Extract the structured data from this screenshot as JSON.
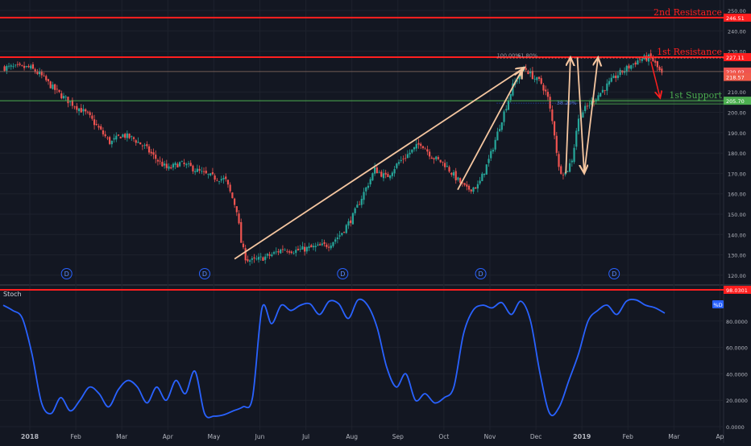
{
  "chart_data": [
    {
      "type": "line",
      "panel": "price",
      "style": "candlestick",
      "title": "",
      "xlabel": "",
      "ylabel": "",
      "x_tick_labels": [
        "2018",
        "Feb",
        "Mar",
        "Apr",
        "May",
        "Jun",
        "Jul",
        "Aug",
        "Sep",
        "Oct",
        "Nov",
        "Dec",
        "2019",
        "Feb",
        "Mar",
        "Ap"
      ],
      "x_range_months": [
        "2018-01",
        "2019-04"
      ],
      "y_ticks": [
        120,
        130,
        140,
        150,
        160,
        170,
        180,
        190,
        200,
        210,
        220,
        230,
        240,
        250
      ],
      "y_tick_labels": [
        "120.00",
        "130.00",
        "140.00",
        "150.00",
        "160.00",
        "170.00",
        "180.00",
        "190.00",
        "200.00",
        "210.00",
        "220.00",
        "230.00",
        "240.00",
        "250.00"
      ],
      "ylim": [
        116,
        252
      ],
      "grid": true,
      "series": [
        {
          "x_month": [
            0,
            0.25,
            0.5,
            0.75,
            1,
            1.25,
            1.5,
            1.75,
            2,
            2.25,
            2.5,
            2.75,
            3,
            3.25,
            3.5,
            3.75,
            4,
            4.25,
            4.5,
            4.6,
            4.7,
            4.85,
            5,
            5.25,
            5.5,
            5.75,
            6,
            6.25,
            6.5,
            6.75,
            7,
            7.25,
            7.5,
            7.75,
            8,
            8.25,
            8.5,
            8.75,
            9,
            9.25,
            9.5,
            9.75,
            10,
            10.25,
            10.5,
            10.75,
            11,
            11.1,
            11.25,
            11.4,
            11.5,
            11.65,
            11.8,
            11.9,
            12,
            12.25,
            12.5,
            12.75,
            13,
            13.25,
            13.5,
            13.75
          ],
          "values": [
            222,
            218,
            212,
            207,
            203,
            199,
            192,
            185,
            189,
            187,
            183,
            177,
            172,
            175,
            173,
            170,
            168,
            167,
            152,
            135,
            128,
            127,
            128,
            130,
            133,
            132,
            133,
            134,
            135,
            140,
            148,
            160,
            172,
            168,
            175,
            180,
            185,
            178,
            175,
            168,
            162,
            164,
            178,
            196,
            213,
            222,
            216,
            215,
            208,
            190,
            172,
            170,
            178,
            195,
            200,
            206,
            212,
            218,
            222,
            226,
            227,
            218
          ],
          "up_color": "#26a69a",
          "down_color": "#ef5350"
        }
      ],
      "horizontal_levels": [
        {
          "value": 246.51,
          "label": "246.51",
          "annotation": "2nd Resistance",
          "color": "#ff1f1f"
        },
        {
          "value": 227.11,
          "label": "227.11",
          "annotation": "1st Resistance",
          "color": "#ff1f1f"
        },
        {
          "value": 205.7,
          "label": "205.70",
          "annotation": "1st Support",
          "color": "#4caf50"
        }
      ],
      "price_labels": [
        {
          "value": 220.02,
          "label": "220.02",
          "color": "#ef5350"
        },
        {
          "value": 218.57,
          "label": "218.57",
          "color": "#f05a4a"
        }
      ],
      "fib_labels": [
        "100.00%",
        "61.80%",
        "38.20%"
      ],
      "dividend_marker": "D",
      "dividend_months": [
        0.8,
        3.8,
        6.8,
        9.8,
        12.7
      ],
      "arrows": [
        {
          "from": [
            4.45,
            128
          ],
          "to": [
            10.75,
            222
          ]
        },
        {
          "from": [
            9.3,
            162
          ],
          "to": [
            10.7,
            221
          ]
        },
        {
          "from": [
            11.65,
            170
          ],
          "to": [
            11.75,
            227
          ]
        },
        {
          "from": [
            11.9,
            227
          ],
          "to": [
            12.05,
            170
          ]
        },
        {
          "from": [
            12.05,
            170
          ],
          "to": [
            12.35,
            227
          ]
        }
      ]
    },
    {
      "type": "line",
      "panel": "oscillator",
      "title": "Stoch",
      "ylim": [
        0,
        100
      ],
      "y_ticks": [
        0,
        20,
        40,
        60,
        80
      ],
      "y_tick_labels": [
        "0.0000",
        "20.0000",
        "40.0000",
        "60.0000",
        "80.0000"
      ],
      "level": {
        "value": 98.0301,
        "label": "98.0301",
        "color": "#ff1f1f"
      },
      "badge": "%D",
      "series": [
        {
          "name": "%D",
          "color": "#2962ff",
          "x_month": [
            0,
            0.2,
            0.4,
            0.6,
            0.8,
            1,
            1.2,
            1.4,
            1.6,
            1.8,
            2,
            2.2,
            2.4,
            2.6,
            2.8,
            3,
            3.2,
            3.4,
            3.6,
            3.8,
            4,
            4.2,
            4.4,
            4.6,
            4.8,
            5,
            5.2,
            5.4,
            5.6,
            5.8,
            6,
            6.2,
            6.4,
            6.6,
            6.8,
            7,
            7.2,
            7.4,
            7.6,
            7.8,
            8,
            8.2,
            8.4,
            8.6,
            8.8,
            9,
            9.2,
            9.4,
            9.6,
            9.8,
            10,
            10.2,
            10.4,
            10.6,
            10.8,
            11,
            11.2,
            11.4,
            11.6,
            11.8,
            12,
            12.2,
            12.4,
            12.6,
            12.8,
            13,
            13.2,
            13.4,
            13.6,
            13.8
          ],
          "values": [
            92,
            88,
            82,
            55,
            18,
            10,
            22,
            12,
            20,
            30,
            25,
            15,
            28,
            35,
            30,
            18,
            30,
            20,
            35,
            25,
            42,
            10,
            8,
            9,
            12,
            15,
            22,
            90,
            78,
            92,
            88,
            92,
            93,
            85,
            95,
            93,
            82,
            96,
            92,
            75,
            45,
            30,
            40,
            20,
            25,
            18,
            22,
            30,
            70,
            88,
            92,
            90,
            94,
            85,
            95,
            80,
            40,
            10,
            15,
            35,
            55,
            80,
            88,
            92,
            85,
            95,
            96,
            92,
            90,
            86
          ],
          "ylim": [
            0,
            100
          ]
        }
      ]
    }
  ]
}
